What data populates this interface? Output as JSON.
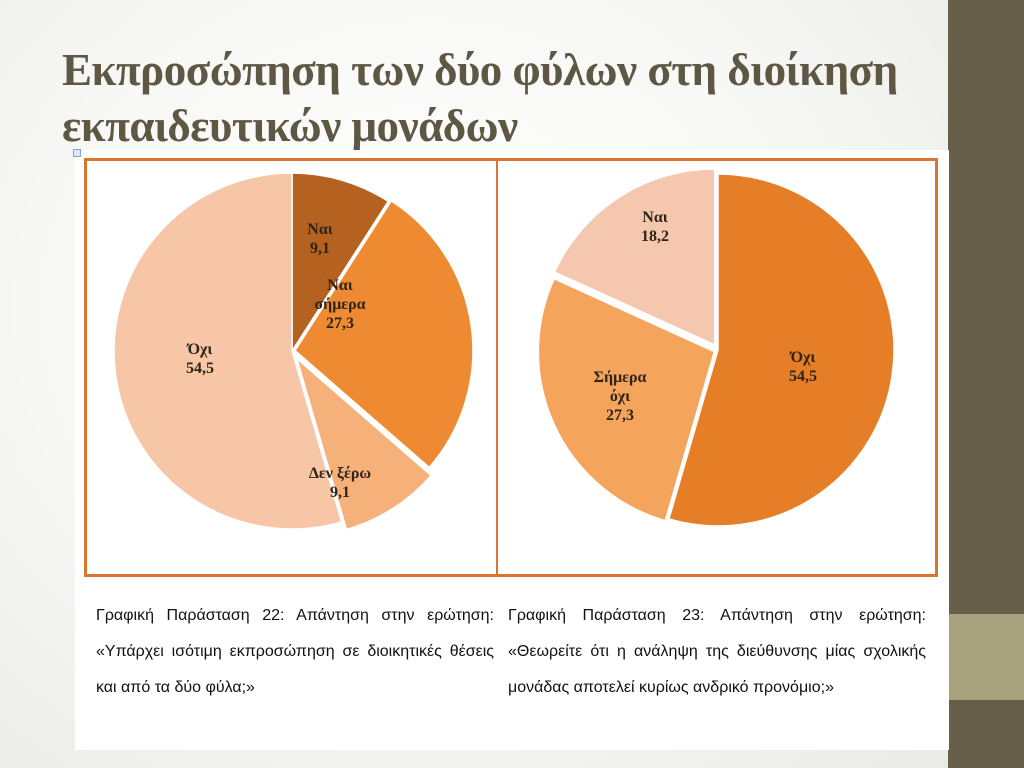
{
  "title": "Εκπροσώπηση των δύο φύλων στη διοίκηση εκπαιδευτικών μονάδων",
  "chart_data": [
    {
      "type": "pie",
      "slices": [
        {
          "label": "Ναι",
          "value": 9.1,
          "value_text": "9,1",
          "color": "#b5611f"
        },
        {
          "label": "Ναι σήμερα",
          "value": 27.3,
          "value_text": "27,3",
          "color": "#ee8b32"
        },
        {
          "label": "Δεν ξέρω",
          "value": 9.1,
          "value_text": "9,1",
          "color": "#f6b07a"
        },
        {
          "label": "Όχι",
          "value": 54.5,
          "value_text": "54,5",
          "color": "#f6c6a6"
        }
      ],
      "caption": "Γραφική Παράσταση 22: Απάντηση στην ερώτηση: «Υπάρχει ισότιμη εκπροσώπηση σε διοικητικές θέσεις και από τα δύο φύλα;»"
    },
    {
      "type": "pie",
      "slices": [
        {
          "label": "Όχι",
          "value": 54.5,
          "value_text": "54,5",
          "color": "#e67e27"
        },
        {
          "label": "Σήμερα όχι",
          "value": 27.3,
          "value_text": "27,3",
          "color": "#f5a45c"
        },
        {
          "label": "Ναι",
          "value": 18.2,
          "value_text": "18,2",
          "color": "#f4c7ae"
        }
      ],
      "caption": "Γραφική Παράσταση 23: Απάντηση στην ερώτηση: «Θεωρείτε ότι η ανάληψη της διεύθυνσης μίας σχολικής μονάδας αποτελεί κυρίως ανδρικό προνόμιο;»"
    }
  ]
}
